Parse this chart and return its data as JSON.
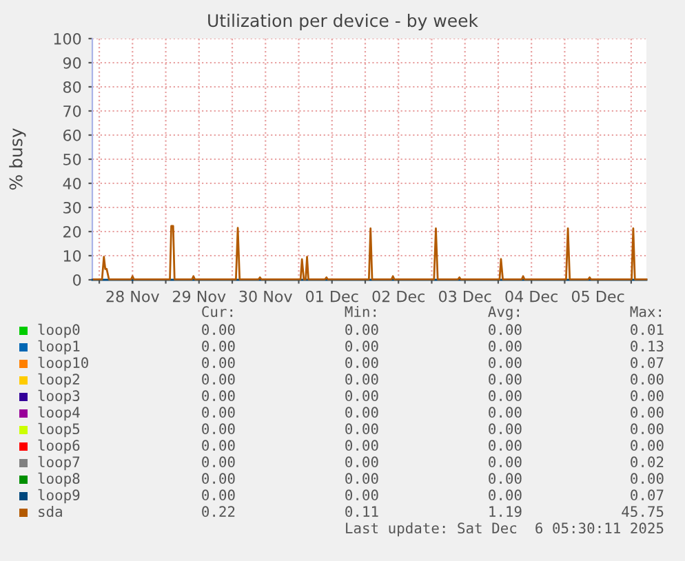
{
  "chart_data": {
    "type": "line",
    "title": "Utilization per device - by week",
    "ylabel": "% busy",
    "xlim": [
      "2025-11-27T21:30",
      "2025-12-06T05:30"
    ],
    "ylim": [
      0,
      100
    ],
    "yticks": [
      0,
      10,
      20,
      30,
      40,
      50,
      60,
      70,
      80,
      90,
      100
    ],
    "xticks": [
      {
        "value": "2025-11-28T00:00",
        "label": null
      },
      {
        "value": "2025-11-28T12:00",
        "label": "28 Nov"
      },
      {
        "value": "2025-11-29T00:00",
        "label": null
      },
      {
        "value": "2025-11-29T12:00",
        "label": "29 Nov"
      },
      {
        "value": "2025-11-30T00:00",
        "label": null
      },
      {
        "value": "2025-11-30T12:00",
        "label": "30 Nov"
      },
      {
        "value": "2025-12-01T00:00",
        "label": null
      },
      {
        "value": "2025-12-01T12:00",
        "label": "01 Dec"
      },
      {
        "value": "2025-12-02T00:00",
        "label": null
      },
      {
        "value": "2025-12-02T12:00",
        "label": "02 Dec"
      },
      {
        "value": "2025-12-03T00:00",
        "label": null
      },
      {
        "value": "2025-12-03T12:00",
        "label": "03 Dec"
      },
      {
        "value": "2025-12-04T00:00",
        "label": null
      },
      {
        "value": "2025-12-04T12:00",
        "label": "04 Dec"
      },
      {
        "value": "2025-12-05T00:00",
        "label": null
      },
      {
        "value": "2025-12-05T12:00",
        "label": "05 Dec"
      },
      {
        "value": "2025-12-06T00:00",
        "label": null
      }
    ],
    "grid": true,
    "legend": "bottom",
    "marker": "none",
    "line_style": "solid",
    "series": [
      {
        "name": "loop0",
        "color": "#00cc00"
      },
      {
        "name": "loop1",
        "color": "#0066b3"
      },
      {
        "name": "loop10",
        "color": "#ff8000"
      },
      {
        "name": "loop2",
        "color": "#ffcc00"
      },
      {
        "name": "loop3",
        "color": "#330099"
      },
      {
        "name": "loop4",
        "color": "#990099"
      },
      {
        "name": "loop5",
        "color": "#ccff00"
      },
      {
        "name": "loop6",
        "color": "#ff0000"
      },
      {
        "name": "loop7",
        "color": "#808080"
      },
      {
        "name": "loop8",
        "color": "#008f00"
      },
      {
        "name": "loop9",
        "color": "#00487d",
        "x": [
          "2025-11-27T21:30",
          "2025-12-06T05:30"
        ],
        "values": [
          0,
          0
        ]
      },
      {
        "name": "sda",
        "color": "#b35a00",
        "x": [
          "2025-11-27T22:00",
          "2025-11-28T01:00",
          "2025-11-28T01:40",
          "2025-11-28T02:10",
          "2025-11-28T02:40",
          "2025-11-28T03:30",
          "2025-11-28T11:30",
          "2025-11-28T12:00",
          "2025-11-28T12:30",
          "2025-11-29T01:30",
          "2025-11-29T02:00",
          "2025-11-29T02:40",
          "2025-11-29T03:10",
          "2025-11-29T09:30",
          "2025-11-29T10:00",
          "2025-11-29T10:30",
          "2025-11-30T01:20",
          "2025-11-30T02:00",
          "2025-11-30T02:40",
          "2025-11-30T09:30",
          "2025-11-30T10:00",
          "2025-11-30T10:30",
          "2025-12-01T00:40",
          "2025-12-01T01:10",
          "2025-12-01T01:50",
          "2025-12-01T02:30",
          "2025-12-01T03:00",
          "2025-12-01T03:30",
          "2025-12-01T09:30",
          "2025-12-01T10:00",
          "2025-12-01T10:30",
          "2025-12-02T01:20",
          "2025-12-02T01:55",
          "2025-12-02T02:30",
          "2025-12-02T09:30",
          "2025-12-02T10:00",
          "2025-12-02T10:30",
          "2025-12-03T00:50",
          "2025-12-03T01:30",
          "2025-12-03T02:10",
          "2025-12-03T09:30",
          "2025-12-03T10:00",
          "2025-12-03T10:30",
          "2025-12-04T00:30",
          "2025-12-04T01:00",
          "2025-12-04T01:40",
          "2025-12-04T08:30",
          "2025-12-04T09:00",
          "2025-12-04T09:30",
          "2025-12-05T00:30",
          "2025-12-05T01:10",
          "2025-12-05T01:50",
          "2025-12-05T08:30",
          "2025-12-05T09:00",
          "2025-12-05T09:30",
          "2025-12-06T00:10",
          "2025-12-06T00:45",
          "2025-12-06T01:20",
          "2025-12-06T05:30"
        ],
        "values": [
          0.2,
          0.2,
          9.5,
          4.5,
          4.5,
          0.2,
          0.2,
          1.5,
          0.2,
          0.2,
          22.3,
          22.3,
          0.2,
          0.2,
          1.5,
          0.2,
          0.2,
          21.5,
          0.2,
          0.2,
          1,
          0.2,
          0.2,
          8.5,
          0.2,
          0.2,
          9.5,
          0.2,
          0.2,
          1,
          0.2,
          0.2,
          21.3,
          0.2,
          0.2,
          1.5,
          0.2,
          0.2,
          21.3,
          0.2,
          0.2,
          1,
          0.2,
          0.2,
          8.6,
          0.2,
          0.2,
          1.5,
          0.2,
          0.2,
          21.3,
          0.2,
          0.2,
          1,
          0.2,
          0.2,
          21.3,
          0.2,
          0.2
        ]
      }
    ],
    "annotations": [
      "Cur:",
      "Min:",
      "Avg:",
      "Max:",
      "0.00",
      "0.00",
      "0.00",
      "0.01",
      "0.00",
      "0.00",
      "0.00",
      "0.13",
      "0.00",
      "0.00",
      "0.00",
      "0.07",
      "0.00",
      "0.00",
      "0.00",
      "0.00",
      "0.00",
      "0.00",
      "0.00",
      "0.00",
      "0.00",
      "0.00",
      "0.00",
      "0.00",
      "0.00",
      "0.00",
      "0.00",
      "0.00",
      "0.00",
      "0.00",
      "0.00",
      "0.00",
      "0.00",
      "0.00",
      "0.00",
      "0.02",
      "0.00",
      "0.00",
      "0.00",
      "0.00",
      "0.00",
      "0.00",
      "0.00",
      "0.07",
      "0.22",
      "0.11",
      "1.19",
      "45.75",
      "Last update: Sat Dec  6 05:30:11 2025"
    ]
  }
}
